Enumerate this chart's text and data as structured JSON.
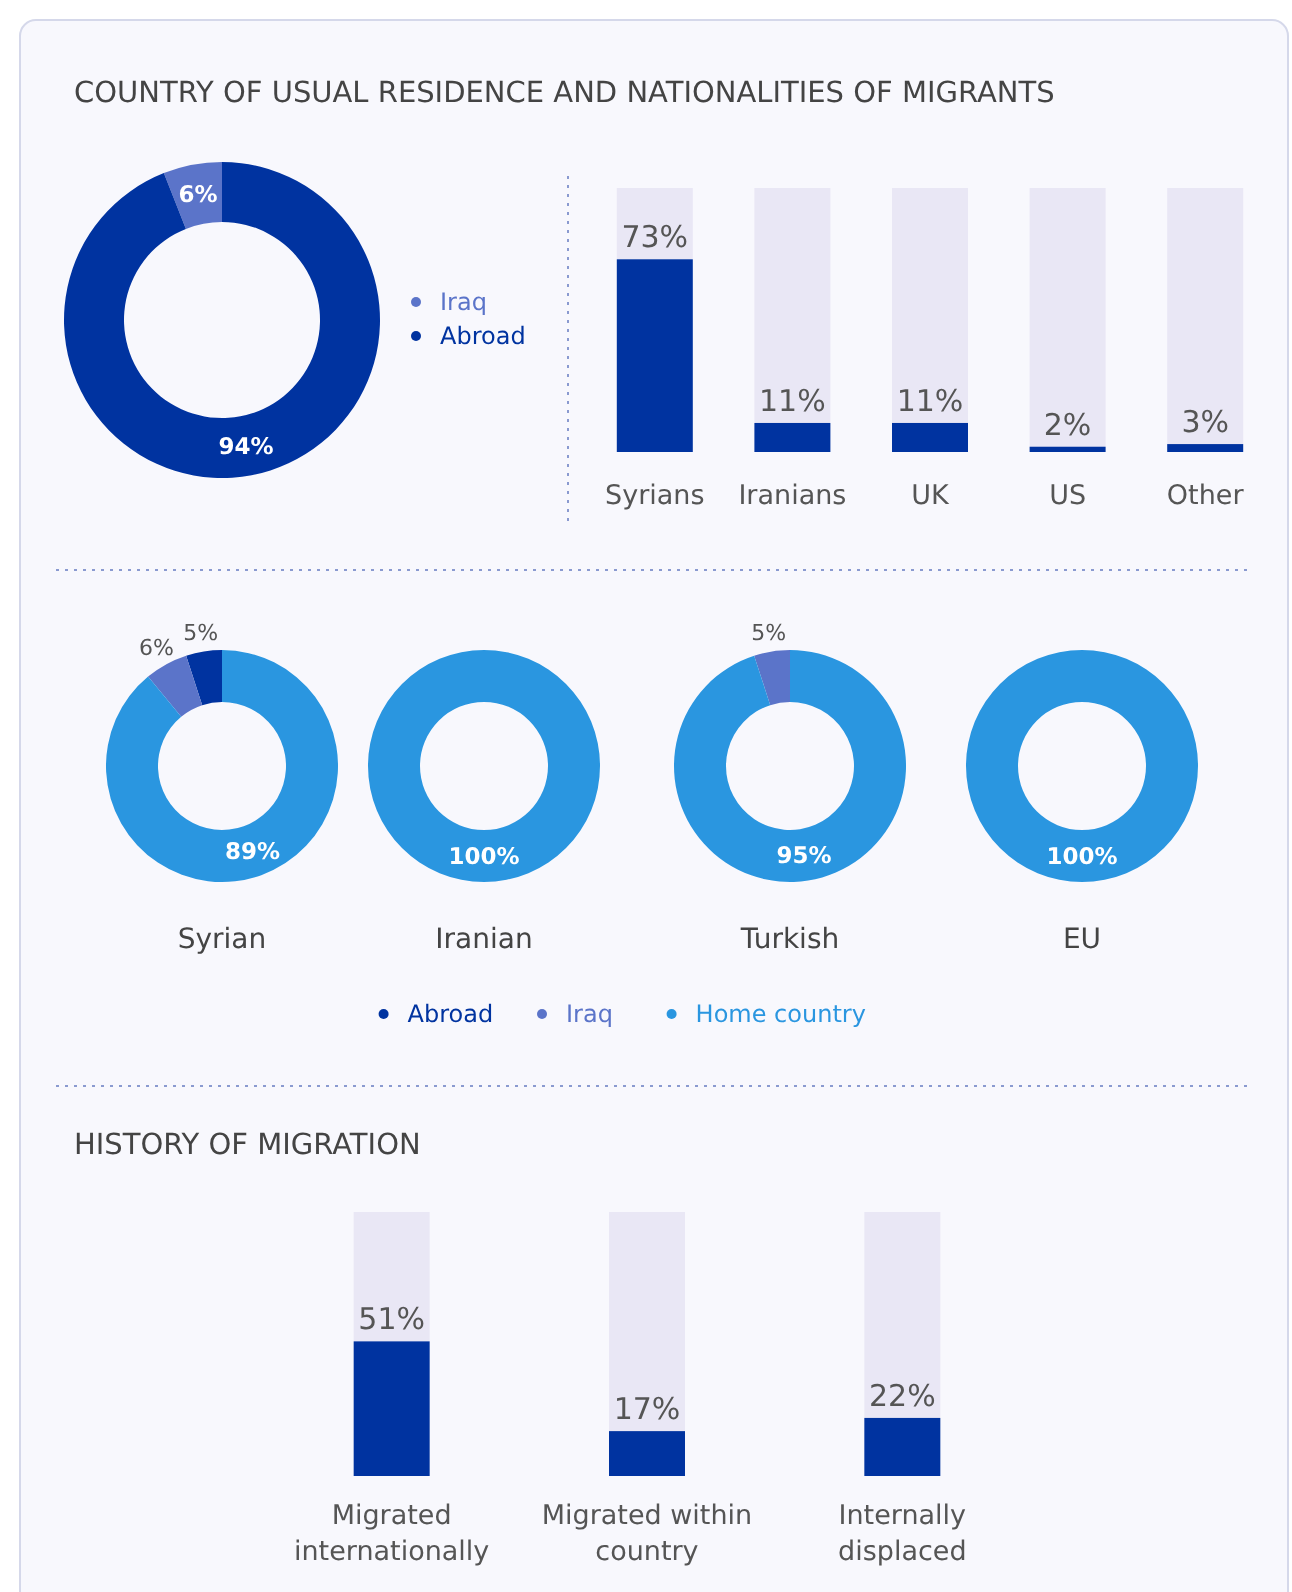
{
  "chart_data": [
    {
      "type": "donut",
      "title": "COUNTRY OF USUAL RESIDENCE AND NATIONALITIES OF MIGRANTS",
      "categories": [
        "Iraq",
        "Abroad"
      ],
      "values": [
        6,
        94
      ],
      "colors": [
        "#5b74c9",
        "#0033a0"
      ],
      "value_labels": [
        "6%",
        "94%"
      ],
      "legend": "right"
    },
    {
      "type": "bar",
      "categories": [
        "Syrians",
        "Iranians",
        "UK",
        "US",
        "Other"
      ],
      "values": [
        73,
        11,
        11,
        2,
        3
      ],
      "color": "#0033a0",
      "ylim": [
        0,
        100
      ],
      "value_labels": [
        "73%",
        "11%",
        "11%",
        "2%",
        "3%"
      ]
    },
    {
      "type": "donut",
      "title": "Syrian",
      "categories": [
        "Abroad",
        "Iraq",
        "Home country"
      ],
      "values": [
        5,
        6,
        89
      ],
      "colors": [
        "#0033a0",
        "#5b74c9",
        "#2a96e0"
      ],
      "value_labels": [
        "5%",
        "6%",
        "89%"
      ],
      "legend": "bottom"
    },
    {
      "type": "donut",
      "title": "Iranian",
      "categories": [
        null
      ],
      "values": [
        100
      ],
      "colors": [
        "#2a96e0"
      ],
      "value_labels": [
        "100%"
      ]
    },
    {
      "type": "donut",
      "title": "Turkish",
      "categories": [
        null,
        null
      ],
      "values": [
        5,
        95
      ],
      "colors": [
        "#5b74c9",
        "#2a96e0"
      ],
      "value_labels": [
        "5%",
        "95%"
      ]
    },
    {
      "type": "donut",
      "title": "EU",
      "categories": [
        null
      ],
      "values": [
        100
      ],
      "colors": [
        "#2a96e0"
      ],
      "value_labels": [
        "100%"
      ]
    },
    {
      "type": "bar",
      "title": "HISTORY OF MIGRATION",
      "categories": [
        "Migrated internationally",
        "Migrated within country",
        "Internally displaced"
      ],
      "values": [
        51,
        17,
        22
      ],
      "color": "#0033a0",
      "ylim": [
        0,
        100
      ],
      "value_labels": [
        "51%",
        "17%",
        "22%"
      ]
    }
  ]
}
